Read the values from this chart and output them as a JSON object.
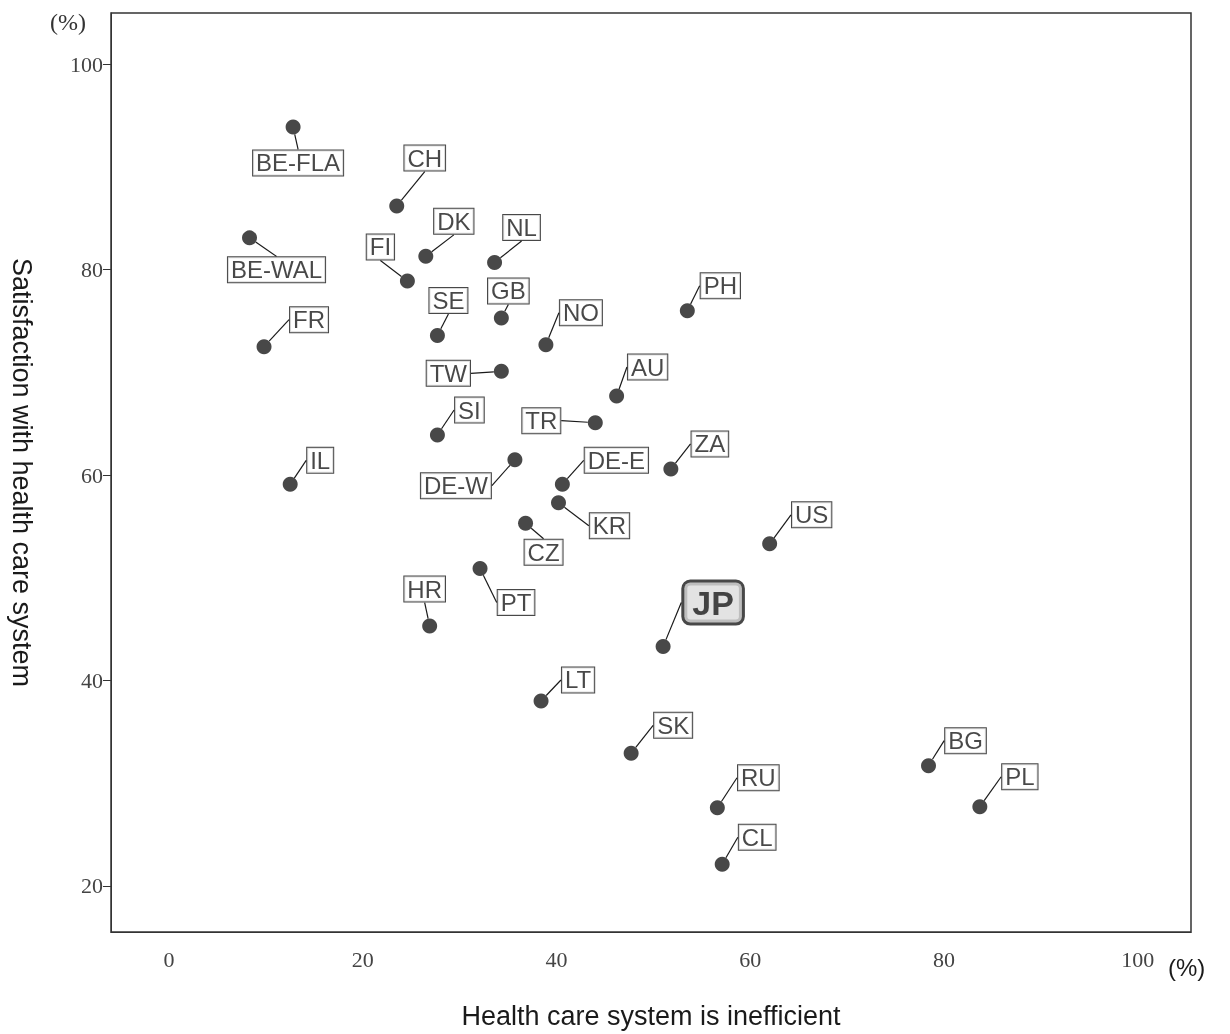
{
  "chart_data": {
    "type": "scatter",
    "xlabel": "Health care system is inefficient",
    "ylabel": "Satisfaction with health care system",
    "x": [
      12.8,
      23.5,
      8.3,
      26.5,
      33.6,
      24.6,
      34.3,
      53.5,
      27.7,
      38.9,
      9.8,
      34.3,
      46.2,
      44.0,
      27.7,
      35.7,
      51.8,
      12.5,
      40.6,
      40.2,
      36.8,
      62.0,
      32.1,
      26.9,
      51.0,
      38.4,
      47.7,
      78.4,
      56.6,
      83.7,
      57.1
    ],
    "values": [
      93.9,
      86.2,
      83.1,
      81.3,
      80.7,
      78.9,
      75.3,
      76.0,
      73.6,
      72.7,
      72.5,
      70.1,
      67.7,
      65.1,
      63.9,
      61.5,
      60.6,
      59.1,
      59.1,
      57.3,
      55.3,
      53.3,
      50.9,
      45.3,
      43.3,
      38.0,
      32.9,
      31.7,
      27.6,
      27.7,
      22.1
    ],
    "color": "#1a1a1a",
    "marker": "circle",
    "grid": false,
    "xlim": [
      -6,
      105.5
    ],
    "xticks": [
      0,
      20,
      40,
      60,
      80,
      100
    ],
    "ylim": [
      15.5,
      105
    ],
    "yticks": [
      20,
      40,
      60,
      80,
      100
    ],
    "annotations": [
      {
        "text": "BE-FLA",
        "x": 12.8,
        "y": 93.9
      },
      {
        "text": "CH",
        "x": 23.5,
        "y": 86.2
      },
      {
        "text": "BE-WAL",
        "x": 8.3,
        "y": 83.1
      },
      {
        "text": "DK",
        "x": 26.5,
        "y": 81.3
      },
      {
        "text": "NL",
        "x": 33.6,
        "y": 80.7
      },
      {
        "text": "FI",
        "x": 24.6,
        "y": 78.9
      },
      {
        "text": "GB",
        "x": 34.3,
        "y": 75.3
      },
      {
        "text": "PH",
        "x": 53.5,
        "y": 76.0
      },
      {
        "text": "SE",
        "x": 27.7,
        "y": 73.6
      },
      {
        "text": "NO",
        "x": 38.9,
        "y": 72.7
      },
      {
        "text": "FR",
        "x": 9.8,
        "y": 72.5
      },
      {
        "text": "TW",
        "x": 34.3,
        "y": 70.1
      },
      {
        "text": "AU",
        "x": 46.2,
        "y": 67.7
      },
      {
        "text": "TR",
        "x": 44.0,
        "y": 65.1
      },
      {
        "text": "SI",
        "x": 27.7,
        "y": 63.9
      },
      {
        "text": "DE-W",
        "x": 35.7,
        "y": 61.5
      },
      {
        "text": "ZA",
        "x": 51.8,
        "y": 60.6
      },
      {
        "text": "IL",
        "x": 12.5,
        "y": 59.1
      },
      {
        "text": "DE-E",
        "x": 40.6,
        "y": 59.1
      },
      {
        "text": "KR",
        "x": 40.2,
        "y": 57.3
      },
      {
        "text": "CZ",
        "x": 36.8,
        "y": 55.3
      },
      {
        "text": "US",
        "x": 62.0,
        "y": 53.3
      },
      {
        "text": "PT",
        "x": 32.1,
        "y": 50.9
      },
      {
        "text": "HR",
        "x": 26.9,
        "y": 45.3
      },
      {
        "text": "JP",
        "x": 51.0,
        "y": 43.3
      },
      {
        "text": "LT",
        "x": 38.4,
        "y": 38.0
      },
      {
        "text": "SK",
        "x": 47.7,
        "y": 32.9
      },
      {
        "text": "BG",
        "x": 78.4,
        "y": 31.7
      },
      {
        "text": "RU",
        "x": 56.6,
        "y": 27.6
      },
      {
        "text": "PL",
        "x": 83.7,
        "y": 27.7
      },
      {
        "text": "CL",
        "x": 57.1,
        "y": 22.1
      },
      "(%)",
      "(%)"
    ]
  }
}
